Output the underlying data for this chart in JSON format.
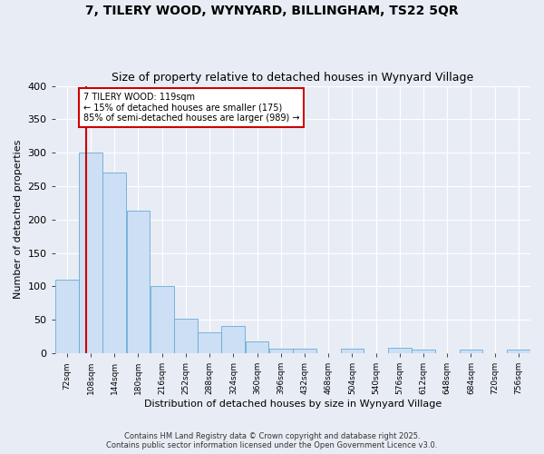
{
  "title1": "7, TILERY WOOD, WYNYARD, BILLINGHAM, TS22 5QR",
  "title2": "Size of property relative to detached houses in Wynyard Village",
  "xlabel": "Distribution of detached houses by size in Wynyard Village",
  "ylabel": "Number of detached properties",
  "footnote": "Contains HM Land Registry data © Crown copyright and database right 2025.\nContains public sector information licensed under the Open Government Licence v3.0.",
  "bar_color": "#ccdff5",
  "bar_edge_color": "#6aaad4",
  "background_color": "#e8edf5",
  "grid_color": "#ffffff",
  "annotation_box_color": "#ffffff",
  "annotation_border_color": "#cc0000",
  "vline_color": "#cc0000",
  "annotation_text": "7 TILERY WOOD: 119sqm\n← 15% of detached houses are smaller (175)\n85% of semi-detached houses are larger (989) →",
  "property_size_sqm": 119,
  "bin_edges": [
    72,
    108,
    144,
    180,
    216,
    252,
    288,
    324,
    360,
    396,
    432,
    468,
    504,
    540,
    576,
    612,
    648,
    684,
    720,
    756,
    792
  ],
  "bar_heights": [
    110,
    300,
    270,
    213,
    101,
    52,
    31,
    41,
    18,
    7,
    7,
    0,
    7,
    0,
    8,
    5,
    0,
    5,
    0,
    5
  ],
  "ylim": [
    0,
    400
  ],
  "yticks": [
    0,
    50,
    100,
    150,
    200,
    250,
    300,
    350,
    400
  ]
}
